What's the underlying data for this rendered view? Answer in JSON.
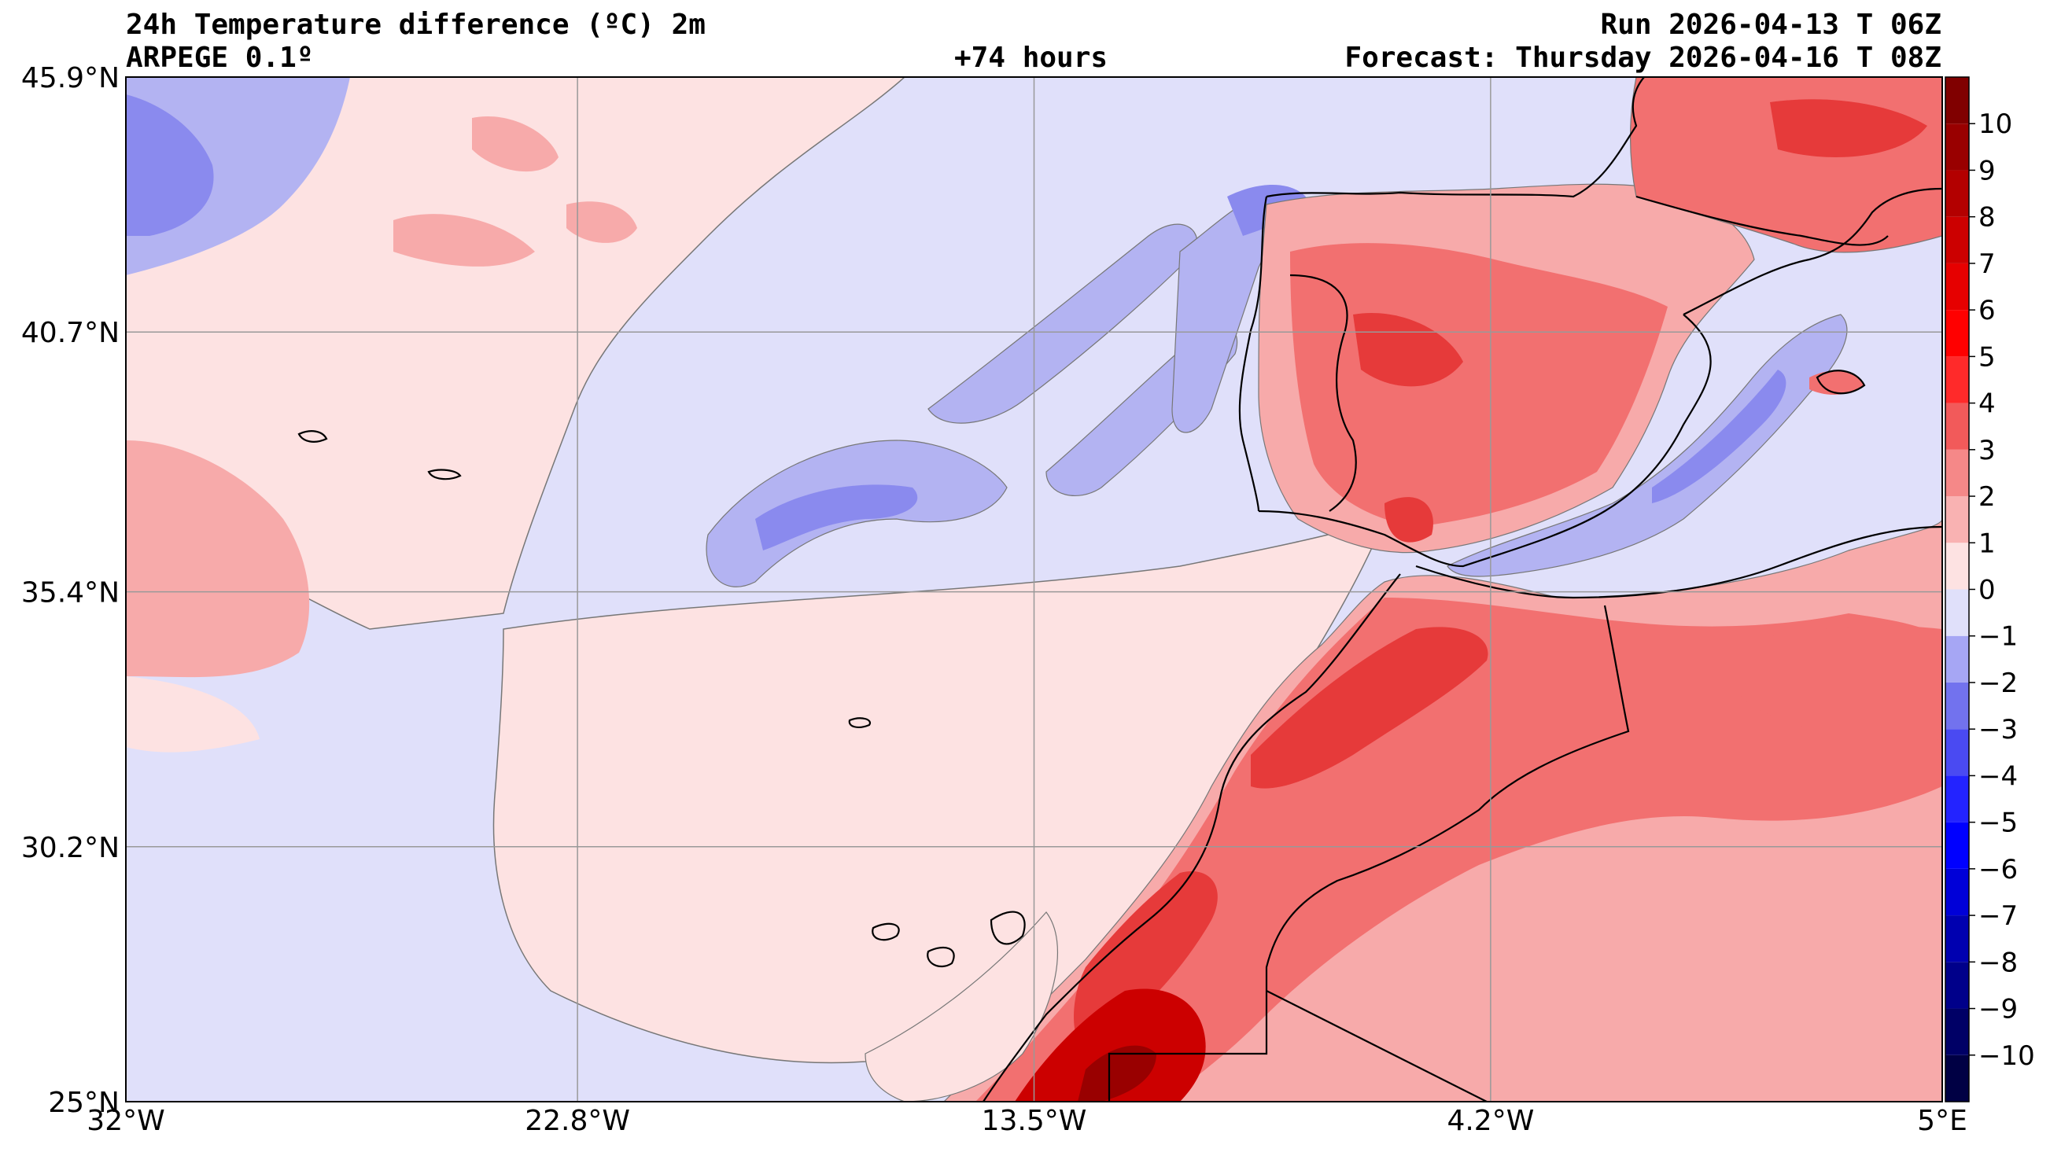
{
  "header": {
    "title": "24h Temperature difference (ºC) 2m",
    "model": "ARPEGE 0.1º",
    "lead_time": "+74 hours",
    "run": "Run 2026-04-13 T 06Z",
    "forecast": "Forecast: Thursday 2026-04-16 T 08Z"
  },
  "map": {
    "projection": "PlateCarree",
    "lon_range": [
      -32,
      5
    ],
    "lat_range": [
      25,
      45.9
    ],
    "lat_ticks": [
      {
        "value": 45.9,
        "label": "45.9°N"
      },
      {
        "value": 40.7,
        "label": "40.7°N"
      },
      {
        "value": 35.4,
        "label": "35.4°N"
      },
      {
        "value": 30.2,
        "label": "30.2°N"
      },
      {
        "value": 25.0,
        "label": "25°N"
      }
    ],
    "lon_ticks": [
      {
        "value": -32,
        "label": "32°W"
      },
      {
        "value": -22.8,
        "label": "22.8°W"
      },
      {
        "value": -13.5,
        "label": "13.5°W"
      },
      {
        "value": -4.2,
        "label": "4.2°W"
      },
      {
        "value": 5,
        "label": "5°E"
      }
    ],
    "background_color": "#e0e0fa",
    "region_colors": {
      "pale_pink": "#fde2e2",
      "light_red": "#f7aaaa",
      "mid_red": "#f27070",
      "red": "#e63a3a",
      "deep_red": "#cc0000",
      "dark_red": "#990000",
      "light_blue": "#b3b3f2",
      "mid_blue": "#8080ee",
      "blue": "#5555e6"
    }
  },
  "colorbar": {
    "levels": [
      -11,
      -10,
      -9,
      -8,
      -7,
      -6,
      -5,
      -4,
      -3,
      -2,
      -1,
      0,
      1,
      2,
      3,
      4,
      5,
      6,
      7,
      8,
      9,
      10,
      11
    ],
    "colors": [
      "#000044",
      "#000066",
      "#00008a",
      "#0000b0",
      "#0000d8",
      "#0000ff",
      "#2323ff",
      "#4a4af2",
      "#7272ee",
      "#a6a6f4",
      "#e0e0fa",
      "#fde2e2",
      "#f9b2b2",
      "#f58888",
      "#f25a5a",
      "#ff2a2a",
      "#ff0000",
      "#e60000",
      "#cc0000",
      "#b30000",
      "#990000",
      "#800000"
    ],
    "tick_labels": [
      "−10",
      "−9",
      "−8",
      "−7",
      "−6",
      "−5",
      "−4",
      "−3",
      "−2",
      "−1",
      "0",
      "1",
      "2",
      "3",
      "4",
      "5",
      "6",
      "7",
      "8",
      "9",
      "10"
    ],
    "tick_values": [
      -10,
      -9,
      -8,
      -7,
      -6,
      -5,
      -4,
      -3,
      -2,
      -1,
      0,
      1,
      2,
      3,
      4,
      5,
      6,
      7,
      8,
      9,
      10
    ]
  }
}
